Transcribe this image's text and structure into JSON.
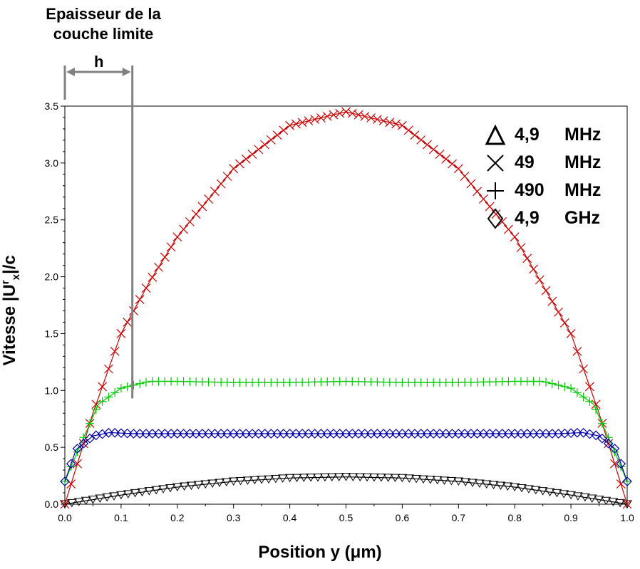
{
  "annotation": {
    "title_line1": "Epaisseur de la",
    "title_line2": "couche limite",
    "h_label": "h"
  },
  "chart_data": {
    "type": "scatter",
    "title": "",
    "xlabel": "Position y (μm)",
    "ylabel_main": "Vitesse |U",
    "ylabel_sup": "r",
    "ylabel_sub": "x",
    "ylabel_end": "|/c",
    "xlim": [
      0.0,
      1.0
    ],
    "ylim": [
      0.0,
      3.5
    ],
    "xticks": [
      "0.0",
      "0.1",
      "0.2",
      "0.3",
      "0.4",
      "0.5",
      "0.6",
      "0.7",
      "0.8",
      "0.9",
      "1.0"
    ],
    "yticks": [
      "0.0",
      "0.5",
      "1.0",
      "1.5",
      "2.0",
      "2.5",
      "3.0",
      "3.5"
    ],
    "grid": false,
    "legend_position": "top-right",
    "boundary_layer_y": 0.12,
    "series": [
      {
        "freq": "4,9",
        "unit": "MHz",
        "marker": "triangle",
        "color": "#000000",
        "x": [
          0.0,
          0.1,
          0.2,
          0.3,
          0.4,
          0.5,
          0.6,
          0.7,
          0.8,
          0.9,
          1.0
        ],
        "y": [
          0.0,
          0.08,
          0.15,
          0.2,
          0.23,
          0.24,
          0.23,
          0.2,
          0.15,
          0.08,
          0.0
        ]
      },
      {
        "freq": "49",
        "unit": "MHz",
        "marker": "x",
        "color": "#cc0000",
        "x": [
          0.0,
          0.05,
          0.1,
          0.15,
          0.2,
          0.3,
          0.4,
          0.5,
          0.6,
          0.7,
          0.8,
          0.9,
          0.95,
          1.0
        ],
        "y": [
          0.0,
          0.8,
          1.5,
          1.95,
          2.35,
          2.95,
          3.33,
          3.45,
          3.33,
          2.95,
          2.35,
          1.5,
          0.8,
          0.0
        ]
      },
      {
        "freq": "490",
        "unit": "MHz",
        "marker": "plus",
        "color": "#00cc00",
        "x": [
          0.0,
          0.03,
          0.06,
          0.1,
          0.15,
          0.2,
          0.3,
          0.4,
          0.5,
          0.6,
          0.7,
          0.8,
          0.85,
          0.9,
          0.94,
          0.97,
          1.0
        ],
        "y": [
          0.2,
          0.55,
          0.88,
          1.02,
          1.08,
          1.08,
          1.07,
          1.07,
          1.08,
          1.07,
          1.07,
          1.08,
          1.08,
          1.02,
          0.88,
          0.55,
          0.2
        ]
      },
      {
        "freq": "4,9",
        "unit": "GHz",
        "marker": "diamond",
        "color": "#0000aa",
        "x": [
          0.0,
          0.02,
          0.05,
          0.08,
          0.12,
          0.2,
          0.3,
          0.4,
          0.5,
          0.6,
          0.7,
          0.8,
          0.88,
          0.92,
          0.95,
          0.98,
          1.0
        ],
        "y": [
          0.2,
          0.48,
          0.6,
          0.63,
          0.62,
          0.62,
          0.62,
          0.62,
          0.62,
          0.62,
          0.62,
          0.62,
          0.62,
          0.63,
          0.6,
          0.48,
          0.2
        ]
      }
    ]
  }
}
